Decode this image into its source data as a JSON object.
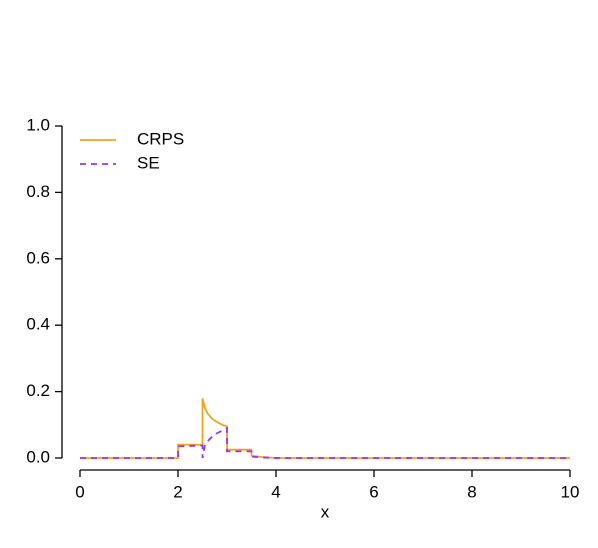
{
  "chart_data": {
    "type": "line",
    "xlabel": "x",
    "x": [
      0,
      2,
      2,
      2.5,
      2.5,
      2.55,
      2.6,
      2.7,
      2.8,
      2.9,
      3,
      3,
      3.5,
      3.5,
      3.7,
      4,
      10
    ],
    "series": [
      {
        "name": "CRPS",
        "color": "#f5a21b",
        "linestyle": "solid",
        "values": [
          0,
          0,
          0.04,
          0.04,
          0.18,
          0.15,
          0.135,
          0.118,
          0.108,
          0.1,
          0.095,
          0.025,
          0.025,
          0.007,
          0.003,
          0,
          0
        ]
      },
      {
        "name": "SE",
        "color": "#9b30ff",
        "linestyle": "dashed",
        "values": [
          0,
          0,
          0.035,
          0.038,
          0,
          0.04,
          0.05,
          0.065,
          0.075,
          0.082,
          0.09,
          0.02,
          0.02,
          0.004,
          0.002,
          0,
          0
        ]
      }
    ],
    "xlim": [
      0,
      10
    ],
    "xticks": [
      0,
      2,
      4,
      6,
      8,
      10
    ],
    "ylim": [
      0,
      1
    ],
    "yticks": [
      {
        "value": 0,
        "label": "0.0"
      },
      0.2,
      0.4,
      0.6,
      0.8,
      {
        "value": 1,
        "label": "1.0"
      }
    ],
    "legend": "top-left",
    "grid": false
  }
}
